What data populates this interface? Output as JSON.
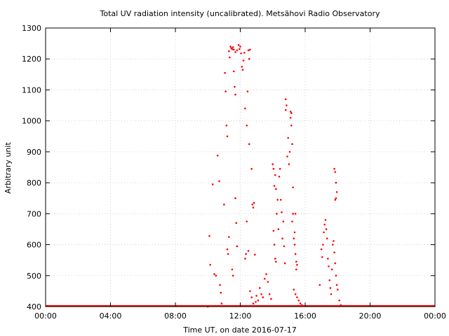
{
  "chart_data": {
    "type": "scatter",
    "title": "Total UV radiation intensity (uncalibrated). Metsähovi Radio Observatory",
    "xlabel": "Time UT, on date 2016-07-17",
    "ylabel": "Arbitrary unit",
    "xlim": [
      0,
      24
    ],
    "ylim": [
      400,
      1300
    ],
    "x_tick_labels": [
      "00:00",
      "04:00",
      "08:00",
      "12:00",
      "16:00",
      "20:00",
      "00:00"
    ],
    "y_tick_labels": [
      "400",
      "500",
      "600",
      "700",
      "800",
      "900",
      "1000",
      "1100",
      "1200",
      "1300"
    ],
    "grid": true,
    "point_color": "#ff0000",
    "baseline": {
      "value": 400,
      "from": 0,
      "to": 24
    },
    "points": [
      [
        10.0,
        400
      ],
      [
        10.1,
        628
      ],
      [
        10.15,
        535
      ],
      [
        10.3,
        795
      ],
      [
        10.4,
        505
      ],
      [
        10.5,
        500
      ],
      [
        10.6,
        888
      ],
      [
        10.7,
        805
      ],
      [
        10.75,
        470
      ],
      [
        10.8,
        445
      ],
      [
        10.85,
        410
      ],
      [
        11.0,
        730
      ],
      [
        11.05,
        1155
      ],
      [
        11.1,
        1095
      ],
      [
        11.15,
        985
      ],
      [
        11.2,
        950
      ],
      [
        11.2,
        585
      ],
      [
        11.25,
        570
      ],
      [
        11.3,
        625
      ],
      [
        11.3,
        1225
      ],
      [
        11.35,
        1205
      ],
      [
        11.4,
        1240
      ],
      [
        11.45,
        1235
      ],
      [
        11.5,
        1232
      ],
      [
        11.55,
        1238
      ],
      [
        11.5,
        520
      ],
      [
        11.55,
        500
      ],
      [
        11.6,
        1160
      ],
      [
        11.65,
        1110
      ],
      [
        11.7,
        1085
      ],
      [
        11.7,
        750
      ],
      [
        11.75,
        670
      ],
      [
        11.8,
        595
      ],
      [
        11.6,
        1230
      ],
      [
        11.7,
        1222
      ],
      [
        11.8,
        1228
      ],
      [
        11.9,
        1245
      ],
      [
        11.95,
        1232
      ],
      [
        12.0,
        1240
      ],
      [
        12.05,
        1218
      ],
      [
        12.1,
        1175
      ],
      [
        12.15,
        1165
      ],
      [
        12.2,
        1195
      ],
      [
        12.25,
        1220
      ],
      [
        12.3,
        1040
      ],
      [
        12.4,
        985
      ],
      [
        12.45,
        1095
      ],
      [
        12.5,
        1228
      ],
      [
        12.55,
        1200
      ],
      [
        12.3,
        555
      ],
      [
        12.35,
        570
      ],
      [
        12.4,
        675
      ],
      [
        12.5,
        580
      ],
      [
        12.55,
        925
      ],
      [
        12.6,
        1230
      ],
      [
        12.7,
        845
      ],
      [
        12.75,
        730
      ],
      [
        12.8,
        720
      ],
      [
        12.85,
        735
      ],
      [
        12.9,
        568
      ],
      [
        12.6,
        450
      ],
      [
        12.7,
        430
      ],
      [
        12.8,
        410
      ],
      [
        12.95,
        415
      ],
      [
        13.0,
        435
      ],
      [
        13.1,
        420
      ],
      [
        13.2,
        460
      ],
      [
        13.3,
        440
      ],
      [
        13.4,
        430
      ],
      [
        13.5,
        490
      ],
      [
        13.6,
        505
      ],
      [
        13.7,
        480
      ],
      [
        13.8,
        440
      ],
      [
        13.9,
        425
      ],
      [
        14.0,
        860
      ],
      [
        14.05,
        845
      ],
      [
        14.1,
        790
      ],
      [
        14.15,
        825
      ],
      [
        14.2,
        780
      ],
      [
        14.25,
        700
      ],
      [
        14.3,
        745
      ],
      [
        14.35,
        650
      ],
      [
        14.05,
        645
      ],
      [
        14.1,
        600
      ],
      [
        14.15,
        555
      ],
      [
        14.2,
        545
      ],
      [
        14.4,
        820
      ],
      [
        14.45,
        845
      ],
      [
        14.5,
        745
      ],
      [
        14.55,
        705
      ],
      [
        14.6,
        620
      ],
      [
        14.65,
        675
      ],
      [
        14.7,
        595
      ],
      [
        14.75,
        540
      ],
      [
        14.8,
        1070
      ],
      [
        14.85,
        1050
      ],
      [
        14.8,
        1035
      ],
      [
        14.9,
        885
      ],
      [
        14.95,
        945
      ],
      [
        15.0,
        860
      ],
      [
        15.05,
        900
      ],
      [
        15.1,
        1030
      ],
      [
        15.15,
        1025
      ],
      [
        15.1,
        1010
      ],
      [
        15.15,
        985
      ],
      [
        15.2,
        925
      ],
      [
        15.25,
        785
      ],
      [
        15.3,
        620
      ],
      [
        15.35,
        600
      ],
      [
        15.4,
        570
      ],
      [
        15.45,
        545
      ],
      [
        15.5,
        535
      ],
      [
        15.3,
        455
      ],
      [
        15.4,
        440
      ],
      [
        15.5,
        430
      ],
      [
        15.6,
        420
      ],
      [
        15.7,
        410
      ],
      [
        15.8,
        405
      ],
      [
        15.2,
        675
      ],
      [
        15.25,
        700
      ],
      [
        15.35,
        640
      ],
      [
        15.4,
        700
      ],
      [
        15.45,
        520
      ],
      [
        16.9,
        470
      ],
      [
        17.0,
        585
      ],
      [
        17.05,
        560
      ],
      [
        17.1,
        600
      ],
      [
        17.15,
        640
      ],
      [
        17.2,
        665
      ],
      [
        17.25,
        680
      ],
      [
        17.3,
        650
      ],
      [
        17.35,
        620
      ],
      [
        17.4,
        555
      ],
      [
        17.45,
        530
      ],
      [
        17.5,
        485
      ],
      [
        17.55,
        460
      ],
      [
        17.6,
        440
      ],
      [
        17.65,
        520
      ],
      [
        17.7,
        600
      ],
      [
        17.75,
        612
      ],
      [
        17.8,
        575
      ],
      [
        17.85,
        540
      ],
      [
        17.9,
        500
      ],
      [
        17.95,
        470
      ],
      [
        17.8,
        845
      ],
      [
        17.85,
        835
      ],
      [
        17.9,
        800
      ],
      [
        17.95,
        770
      ],
      [
        17.85,
        745
      ],
      [
        17.9,
        750
      ],
      [
        18.0,
        455
      ],
      [
        18.1,
        420
      ],
      [
        18.2,
        405
      ]
    ]
  }
}
